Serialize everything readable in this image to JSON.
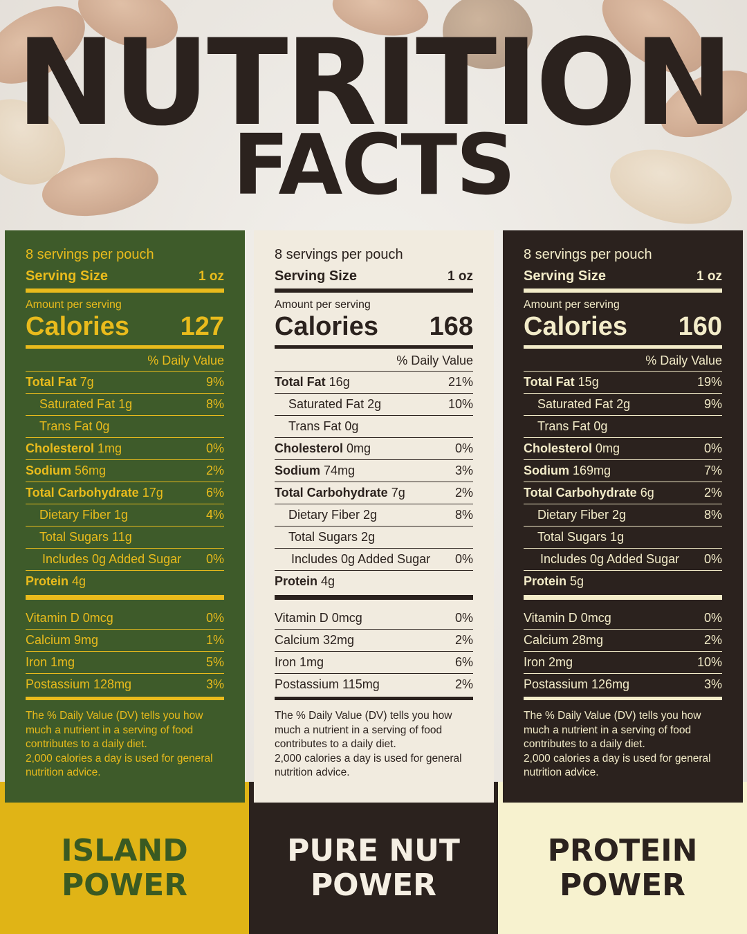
{
  "title": {
    "line1": "NUTRITION",
    "line2": "FACTS"
  },
  "colors": {
    "green": "#3e5b2a",
    "gold": "#e9bb1c",
    "cream": "#f1ebdf",
    "dark": "#2b221e",
    "pale_yellow": "#f7f2cf"
  },
  "panels": [
    {
      "servings": "8 servings per pouch",
      "serving_size_label": "Serving Size",
      "serving_size": "1 oz",
      "amount_per_serving": "Amount per serving",
      "calories_label": "Calories",
      "calories": "127",
      "dv_header": "% Daily Value",
      "rows": [
        {
          "bold": "Total Fat",
          "rest": " 7g",
          "pct": "9%"
        },
        {
          "bold": "",
          "rest": "Saturated Fat 1g",
          "pct": "8%"
        },
        {
          "bold": "",
          "rest": "Trans Fat 0g",
          "pct": ""
        },
        {
          "bold": "Cholesterol",
          "rest": " 1mg",
          "pct": "0%"
        },
        {
          "bold": "Sodium",
          "rest": " 56mg",
          "pct": "2%"
        },
        {
          "bold": "Total Carbohydrate",
          "rest": " 17g",
          "pct": "6%"
        },
        {
          "bold": "",
          "rest": "Dietary Fiber 1g",
          "pct": "4%"
        },
        {
          "bold": "",
          "rest": "Total Sugars 11g",
          "pct": ""
        },
        {
          "bold": "",
          "rest": "Includes 0g Added Sugar",
          "pct": "0%"
        },
        {
          "bold": "Protein",
          "rest": " 4g",
          "pct": ""
        }
      ],
      "vitamins": [
        {
          "name": "Vitamin D 0mcg",
          "pct": "0%"
        },
        {
          "name": "Calcium 9mg",
          "pct": "1%"
        },
        {
          "name": "Iron 1mg",
          "pct": "5%"
        },
        {
          "name": "Postassium 128mg",
          "pct": "3%"
        }
      ],
      "footnote_1": "The % Daily Value (DV) tells you how much a nutrient in a serving of food contributes to a daily diet.",
      "footnote_2": "2,000 calories a day is used for general nutrition advice.",
      "product_line1": "ISLAND",
      "product_line2": "POWER"
    },
    {
      "servings": "8 servings per pouch",
      "serving_size_label": "Serving Size",
      "serving_size": "1 oz",
      "amount_per_serving": "Amount per serving",
      "calories_label": "Calories",
      "calories": "168",
      "dv_header": "% Daily Value",
      "rows": [
        {
          "bold": "Total Fat",
          "rest": " 16g",
          "pct": "21%"
        },
        {
          "bold": "",
          "rest": "Saturated Fat 2g",
          "pct": "10%"
        },
        {
          "bold": "",
          "rest": "Trans Fat 0g",
          "pct": ""
        },
        {
          "bold": "Cholesterol",
          "rest": " 0mg",
          "pct": "0%"
        },
        {
          "bold": "Sodium",
          "rest": " 74mg",
          "pct": "3%"
        },
        {
          "bold": "Total Carbohydrate",
          "rest": " 7g",
          "pct": "2%"
        },
        {
          "bold": "",
          "rest": "Dietary Fiber 2g",
          "pct": "8%"
        },
        {
          "bold": "",
          "rest": "Total Sugars 2g",
          "pct": ""
        },
        {
          "bold": "",
          "rest": "Includes 0g Added Sugar",
          "pct": "0%"
        },
        {
          "bold": "Protein",
          "rest": " 4g",
          "pct": ""
        }
      ],
      "vitamins": [
        {
          "name": "Vitamin D 0mcg",
          "pct": "0%"
        },
        {
          "name": "Calcium 32mg",
          "pct": "2%"
        },
        {
          "name": "Iron 1mg",
          "pct": "6%"
        },
        {
          "name": "Postassium 115mg",
          "pct": "2%"
        }
      ],
      "footnote_1": "The % Daily Value (DV) tells you how much a nutrient in a serving of food contributes to a daily diet.",
      "footnote_2": "2,000 calories a day is used for general nutrition advice.",
      "product_line1": "PURE NUT",
      "product_line2": "POWER"
    },
    {
      "servings": "8 servings per pouch",
      "serving_size_label": "Serving Size",
      "serving_size": "1 oz",
      "amount_per_serving": "Amount per serving",
      "calories_label": "Calories",
      "calories": "160",
      "dv_header": "% Daily Value",
      "rows": [
        {
          "bold": "Total Fat",
          "rest": " 15g",
          "pct": "19%"
        },
        {
          "bold": "",
          "rest": "Saturated Fat 2g",
          "pct": "9%"
        },
        {
          "bold": "",
          "rest": "Trans Fat 0g",
          "pct": ""
        },
        {
          "bold": "Cholesterol",
          "rest": " 0mg",
          "pct": "0%"
        },
        {
          "bold": "Sodium",
          "rest": " 169mg",
          "pct": "7%"
        },
        {
          "bold": "Total Carbohydrate",
          "rest": " 6g",
          "pct": "2%"
        },
        {
          "bold": "",
          "rest": "Dietary Fiber 2g",
          "pct": "8%"
        },
        {
          "bold": "",
          "rest": "Total Sugars 1g",
          "pct": ""
        },
        {
          "bold": "",
          "rest": "Includes 0g Added Sugar",
          "pct": "0%"
        },
        {
          "bold": "Protein",
          "rest": " 5g",
          "pct": ""
        }
      ],
      "vitamins": [
        {
          "name": "Vitamin D 0mcg",
          "pct": "0%"
        },
        {
          "name": "Calcium 28mg",
          "pct": "2%"
        },
        {
          "name": "Iron 2mg",
          "pct": "10%"
        },
        {
          "name": "Postassium 126mg",
          "pct": "3%"
        }
      ],
      "footnote_1": "The % Daily Value (DV) tells you how much a nutrient in a serving of food contributes to a daily diet.",
      "footnote_2": "2,000 calories a day is used for general nutrition advice.",
      "product_line1": "PROTEIN",
      "product_line2": "POWER"
    }
  ]
}
